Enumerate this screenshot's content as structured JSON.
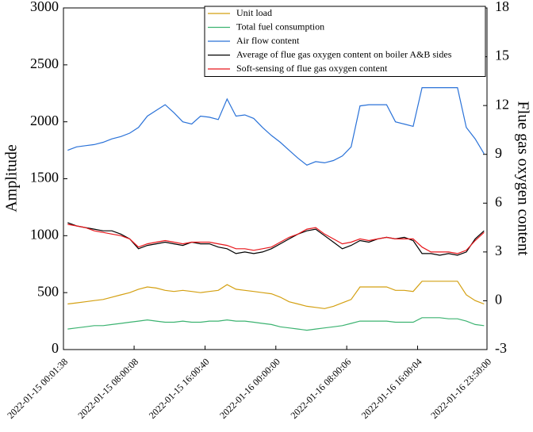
{
  "chart_data": {
    "type": "line",
    "x_label": null,
    "y_label": "Amplitude",
    "y2_label": "Flue gas oxygen content",
    "legend": "upper right",
    "xlim": [
      "2022-01-15 00:01:38",
      "2022-01-16 23:50:00"
    ],
    "xticks": [
      {
        "value": "2022-01-15 00:01:38",
        "label": "2022-01-15 00:01:38"
      },
      {
        "value": "2022-01-15 08:00:08",
        "label": "2022-01-15 08:00:08"
      },
      {
        "value": "2022-01-15 16:00:40",
        "label": "2022-01-15 16:00:40"
      },
      {
        "value": "2022-01-16 00:00:00",
        "label": "2022-01-16 00:00:00"
      },
      {
        "value": "2022-01-16 08:00:06",
        "label": "2022-01-16 08:00:06"
      },
      {
        "value": "2022-01-16 16:00:04",
        "label": "2022-01-16 16:00:04"
      },
      {
        "value": "2022-01-16 23:50:00",
        "label": "2022-01-16 23:50:00"
      }
    ],
    "ylim": [
      0,
      3000
    ],
    "yticks": [
      0,
      500,
      1000,
      1500,
      2000,
      2500,
      3000
    ],
    "y2lim": [
      -3,
      18
    ],
    "y2ticks": [
      -3,
      0,
      3,
      6,
      9,
      12,
      15,
      18
    ],
    "x": [
      "2022-01-15 00:30",
      "2022-01-15 01:30",
      "2022-01-15 02:30",
      "2022-01-15 03:30",
      "2022-01-15 04:30",
      "2022-01-15 05:30",
      "2022-01-15 06:30",
      "2022-01-15 07:30",
      "2022-01-15 08:30",
      "2022-01-15 09:30",
      "2022-01-15 10:30",
      "2022-01-15 11:30",
      "2022-01-15 12:30",
      "2022-01-15 13:30",
      "2022-01-15 14:30",
      "2022-01-15 15:30",
      "2022-01-15 16:30",
      "2022-01-15 17:30",
      "2022-01-15 18:30",
      "2022-01-15 19:30",
      "2022-01-15 20:30",
      "2022-01-15 21:30",
      "2022-01-15 22:30",
      "2022-01-15 23:30",
      "2022-01-16 00:30",
      "2022-01-16 01:30",
      "2022-01-16 02:30",
      "2022-01-16 03:30",
      "2022-01-16 04:30",
      "2022-01-16 05:30",
      "2022-01-16 06:30",
      "2022-01-16 07:30",
      "2022-01-16 08:30",
      "2022-01-16 09:30",
      "2022-01-16 10:30",
      "2022-01-16 11:30",
      "2022-01-16 12:30",
      "2022-01-16 13:30",
      "2022-01-16 14:30",
      "2022-01-16 15:30",
      "2022-01-16 16:30",
      "2022-01-16 17:30",
      "2022-01-16 18:30",
      "2022-01-16 19:30",
      "2022-01-16 20:30",
      "2022-01-16 21:30",
      "2022-01-16 22:30",
      "2022-01-16 23:30"
    ],
    "series": [
      {
        "name": "Unit load",
        "color": "#d4a012",
        "values": [
          400,
          410,
          420,
          430,
          440,
          460,
          480,
          500,
          530,
          550,
          540,
          520,
          510,
          520,
          510,
          500,
          510,
          520,
          570,
          530,
          520,
          510,
          500,
          490,
          460,
          420,
          400,
          380,
          370,
          360,
          380,
          410,
          440,
          550,
          550,
          550,
          550,
          520,
          520,
          510,
          600,
          600,
          600,
          600,
          600,
          480,
          430,
          400
        ]
      },
      {
        "name": "Total fuel consumption",
        "color": "#3cb371",
        "values": [
          180,
          190,
          200,
          210,
          210,
          220,
          230,
          240,
          250,
          260,
          250,
          240,
          240,
          250,
          240,
          240,
          250,
          250,
          260,
          250,
          250,
          240,
          230,
          220,
          200,
          190,
          180,
          170,
          180,
          190,
          200,
          210,
          230,
          250,
          250,
          250,
          250,
          240,
          240,
          240,
          280,
          280,
          280,
          270,
          270,
          250,
          220,
          210
        ]
      },
      {
        "name": "Air flow content",
        "color": "#2a72d8",
        "values": [
          1750,
          1780,
          1790,
          1800,
          1820,
          1850,
          1870,
          1900,
          1950,
          2050,
          2100,
          2150,
          2080,
          2000,
          1980,
          2050,
          2040,
          2020,
          2200,
          2050,
          2060,
          2030,
          1950,
          1880,
          1820,
          1750,
          1680,
          1620,
          1650,
          1640,
          1660,
          1700,
          1780,
          2140,
          2150,
          2150,
          2150,
          2000,
          1980,
          1960,
          2300,
          2300,
          2300,
          2300,
          2300,
          1950,
          1850,
          1720
        ]
      },
      {
        "name": "Average of flue gas oxygen content on boiler A&B sides",
        "color": "#000000",
        "axis": "y2",
        "values": [
          4.8,
          4.6,
          4.5,
          4.4,
          4.3,
          4.3,
          4.1,
          3.8,
          3.2,
          3.4,
          3.5,
          3.6,
          3.5,
          3.4,
          3.6,
          3.5,
          3.5,
          3.3,
          3.2,
          2.9,
          3.0,
          2.9,
          3.0,
          3.2,
          3.5,
          3.8,
          4.1,
          4.3,
          4.4,
          4.0,
          3.6,
          3.2,
          3.4,
          3.7,
          3.6,
          3.8,
          3.9,
          3.8,
          3.9,
          3.7,
          2.9,
          2.9,
          2.8,
          2.9,
          2.8,
          3.0,
          3.8,
          4.3
        ]
      },
      {
        "name": "Soft-sensing of flue gas oxygen content",
        "color": "#e8161b",
        "axis": "y2",
        "values": [
          4.7,
          4.6,
          4.5,
          4.3,
          4.2,
          4.1,
          4.0,
          3.8,
          3.3,
          3.5,
          3.6,
          3.7,
          3.6,
          3.5,
          3.6,
          3.6,
          3.6,
          3.5,
          3.4,
          3.2,
          3.2,
          3.1,
          3.2,
          3.3,
          3.6,
          3.9,
          4.1,
          4.4,
          4.5,
          4.1,
          3.8,
          3.5,
          3.6,
          3.8,
          3.7,
          3.8,
          3.9,
          3.8,
          3.8,
          3.8,
          3.3,
          3.0,
          3.0,
          3.0,
          2.9,
          3.1,
          3.7,
          4.2
        ]
      }
    ]
  }
}
